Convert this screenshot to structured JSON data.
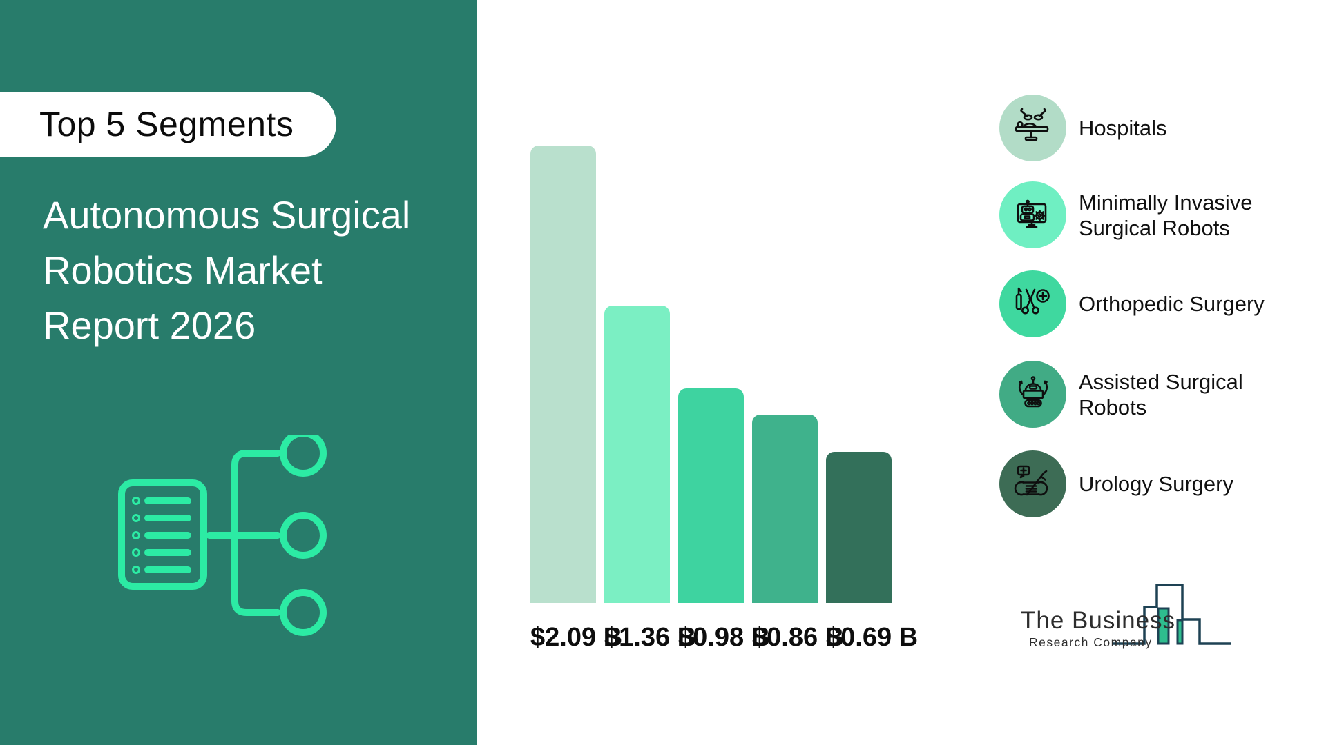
{
  "sidebar": {
    "badge": "Top 5 Segments",
    "title_lines": [
      "Autonomous Surgical",
      "Robotics Market",
      "Report 2026"
    ],
    "colors": {
      "background": "#287C6B",
      "icon_stroke": "#2CEBA4"
    }
  },
  "chart_data": {
    "type": "bar",
    "title": "Autonomous Surgical Robotics Market Report 2026 - Top 5 Segments",
    "unit": "USD Billions",
    "categories": [
      "Hospitals",
      "Minimally Invasive Surgical Robots",
      "Orthopedic Surgery",
      "Assisted Surgical Robots",
      "Urology Surgery"
    ],
    "values": [
      2.09,
      1.36,
      0.98,
      0.86,
      0.69
    ],
    "labels": [
      "$2.09 B",
      "$1.36 B",
      "$0.98 B",
      "$0.86 B",
      "$0.69 B"
    ],
    "bar_colors": [
      "#B9E0CD",
      "#7BEFC3",
      "#3ED3A0",
      "#3FB28C",
      "#33705A"
    ],
    "xlabel": "",
    "ylabel": "",
    "grid": false,
    "legend_position": "right"
  },
  "legend": {
    "items": [
      {
        "label": "Hospitals",
        "color": "#B2DCC7",
        "icon": "operating-table-icon"
      },
      {
        "label": "Minimally Invasive Surgical Robots",
        "color": "#6FEFC2",
        "icon": "robot-monitor-icon"
      },
      {
        "label": "Orthopedic Surgery",
        "color": "#3FD89F",
        "icon": "surgical-tools-icon"
      },
      {
        "label": "Assisted Surgical Robots",
        "color": "#41AB85",
        "icon": "assisted-robot-icon"
      },
      {
        "label": "Urology Surgery",
        "color": "#3D6C55",
        "icon": "kidney-scalpel-icon"
      }
    ]
  },
  "footer": {
    "logo_line1": "The Business",
    "logo_line2": "Research Company",
    "logo_navy": "#1E4254",
    "logo_green": "#2EBD8E"
  }
}
